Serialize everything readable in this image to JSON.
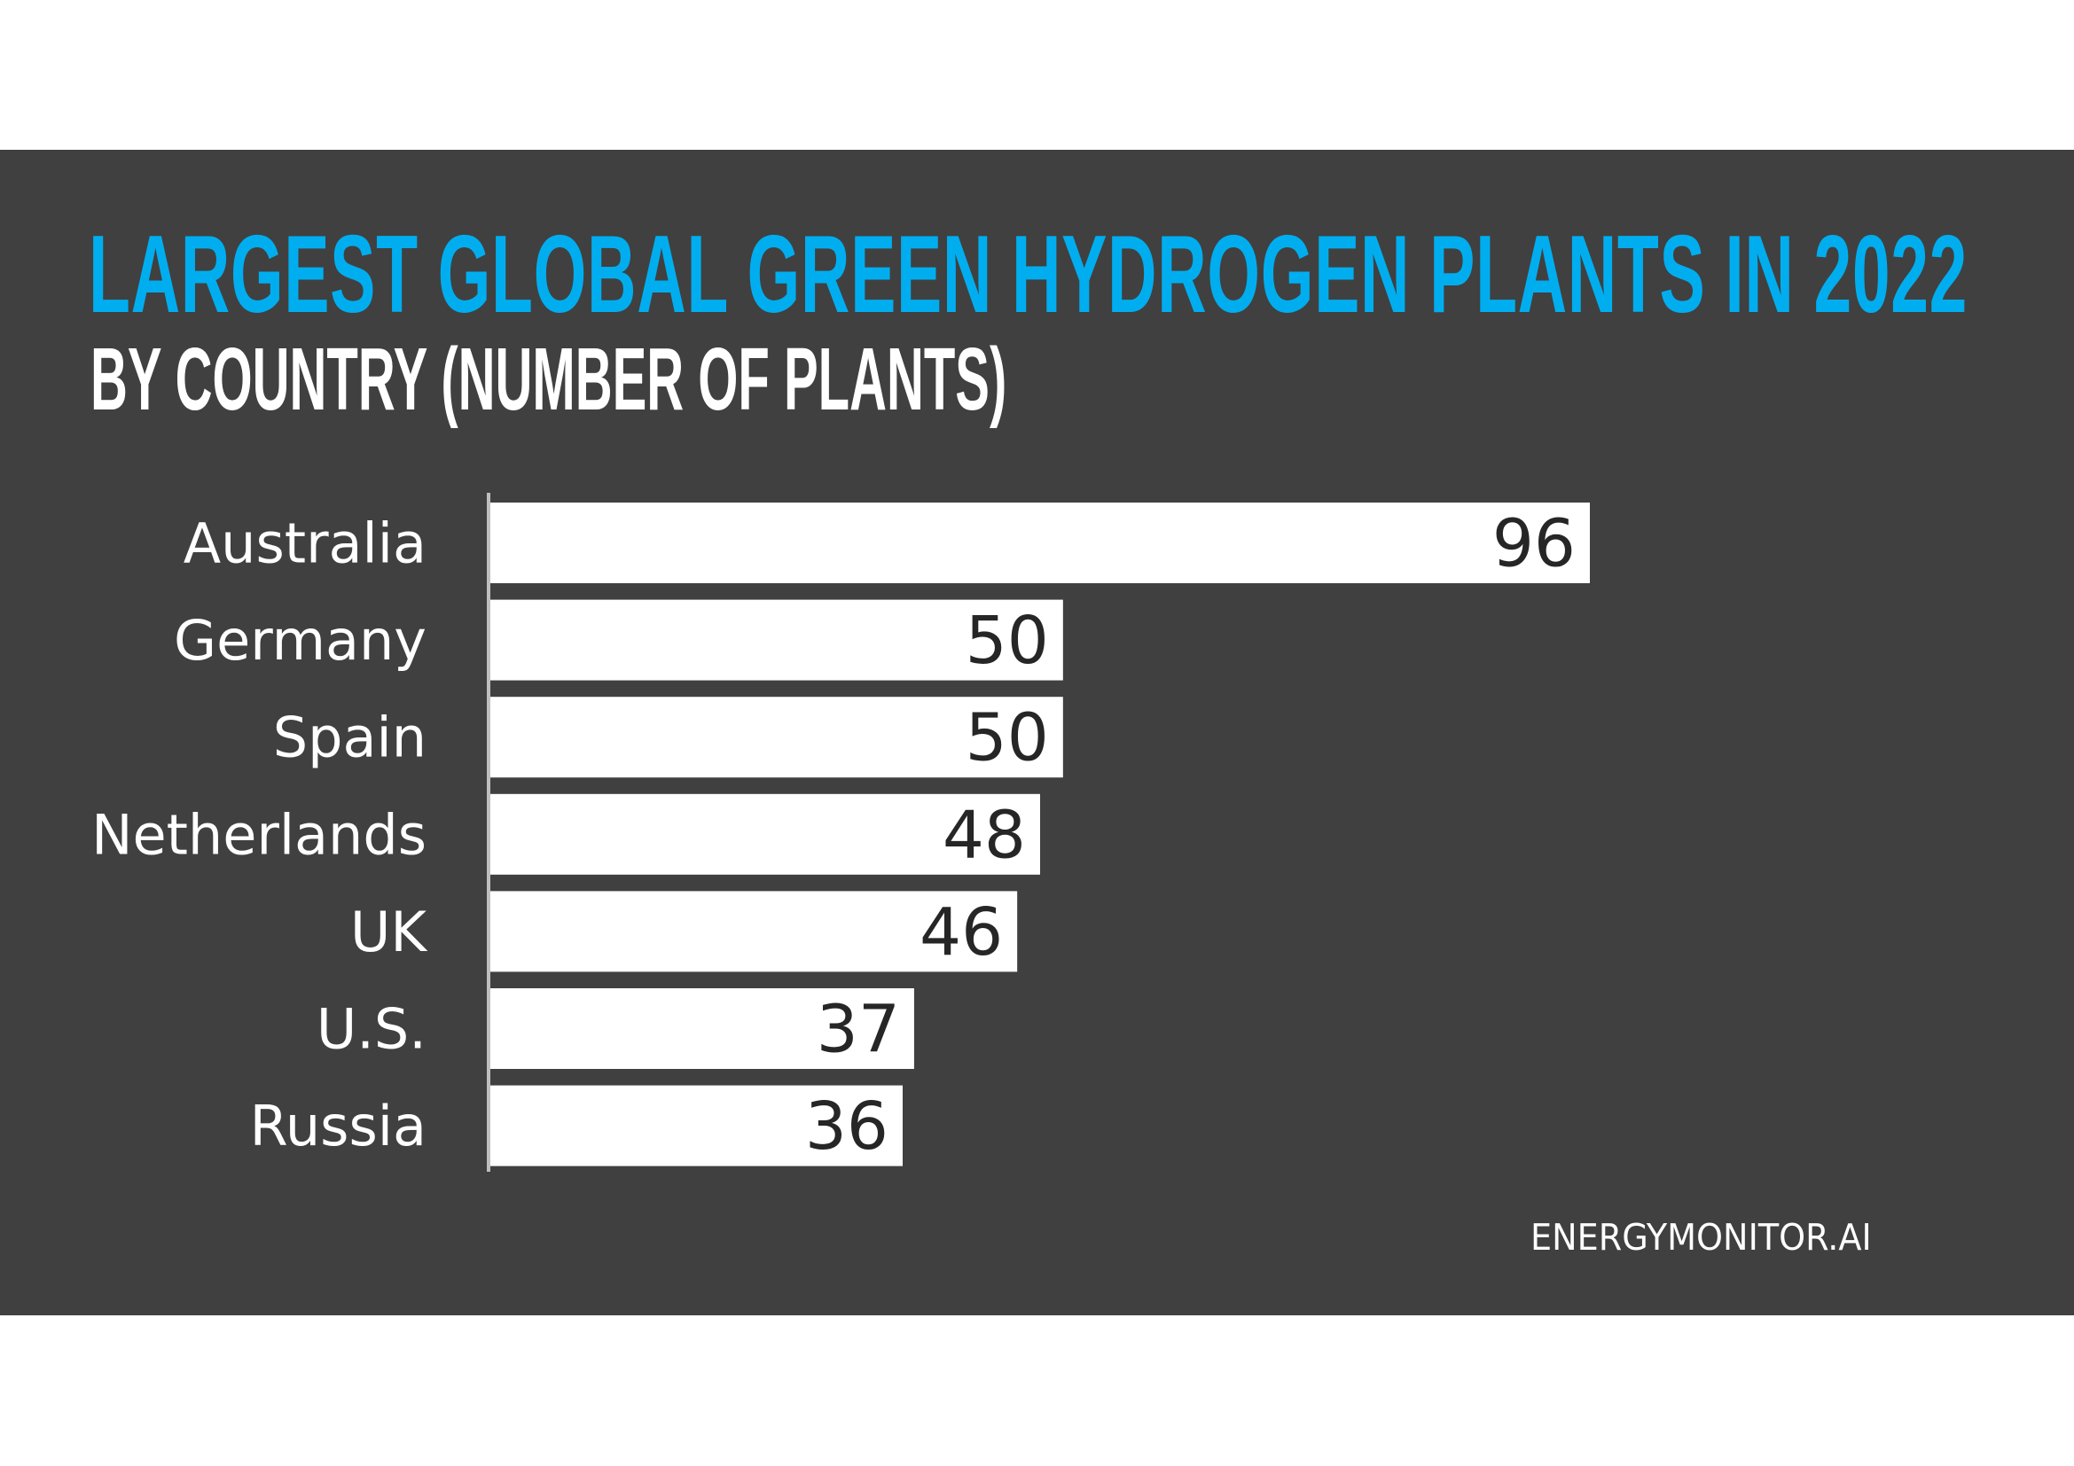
{
  "chart_data": {
    "type": "bar",
    "orientation": "horizontal",
    "title": "LARGEST GLOBAL GREEN HYDROGEN PLANTS IN 2022",
    "subtitle": "BY COUNTRY (NUMBER OF PLANTS)",
    "categories": [
      "Australia",
      "Germany",
      "Spain",
      "Netherlands",
      "UK",
      "U.S.",
      "Russia"
    ],
    "values": [
      96,
      50,
      50,
      48,
      46,
      37,
      36
    ],
    "xlim": [
      0,
      96
    ],
    "grid": false,
    "data_labels": true,
    "colors": {
      "background": "#404040",
      "bar": "#ffffff",
      "title": "#00aeef",
      "axis": "#bfbfbf",
      "label": "#ffffff",
      "value": "#262626"
    }
  },
  "source": "ENERGYMONITOR.AI"
}
